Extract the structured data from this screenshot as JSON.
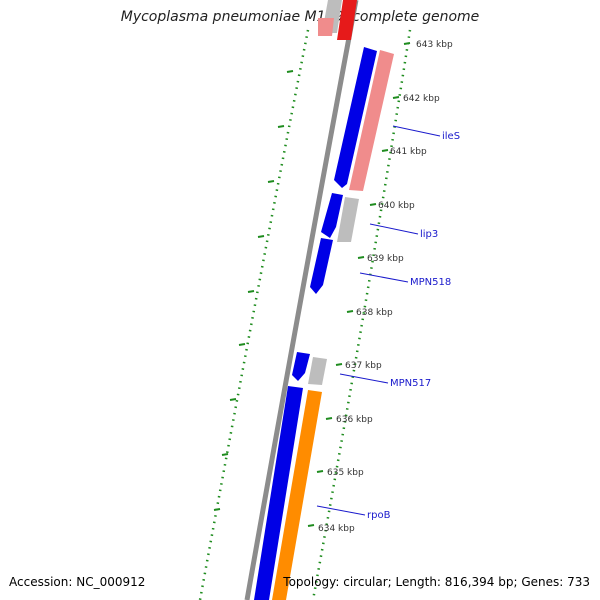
{
  "title": "Mycoplasma pneumoniae M129, complete genome",
  "footer": {
    "accession": "Accession: NC_000912",
    "stats": "Topology: circular; Length: 816,394 bp; Genes: 733"
  },
  "ticks": [
    "643 kbp",
    "642 kbp",
    "641 kbp",
    "640 kbp",
    "639 kbp",
    "638 kbp",
    "637 kbp",
    "636 kbp",
    "635 kbp",
    "634 kbp"
  ],
  "gene_labels": [
    "ileS",
    "lip3",
    "MPN518",
    "MPN517",
    "rpoB"
  ],
  "colors": {
    "backbone": "#8c8c8c",
    "forward_cds": "#0000e6",
    "rrna_red": "#e61a1a",
    "trna_pink": "#f08c8c",
    "misc_gray": "#bdbdbd",
    "orange_cds": "#ff8c00",
    "tick_green": "#1f8c1f",
    "label_blue": "#1a1acc"
  }
}
